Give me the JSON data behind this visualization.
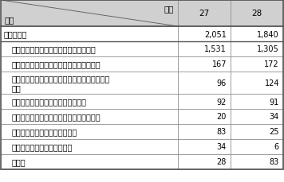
{
  "rows": [
    {
      "label": "合計（件）",
      "v27": "2,051",
      "v28": "1,840",
      "indent": false,
      "bold": false
    },
    {
      "label": "インターネットバンキングでの不正送金",
      "v27": "1,531",
      "v28": "1,305",
      "indent": true,
      "bold": false
    },
    {
      "label": "インターネットショッピングでの不正購入",
      "v27": "167",
      "v28": "172",
      "indent": true,
      "bold": false
    },
    {
      "label": "オンラインゲーム、コミュニティサイトの不正\n操作",
      "v27": "96",
      "v28": "124",
      "indent": true,
      "bold": false,
      "tall": true
    },
    {
      "label": "メールの盗み見等の情報の不正入手",
      "v27": "92",
      "v28": "91",
      "indent": true,
      "bold": false
    },
    {
      "label": "インターネット・オークションの不正操作",
      "v27": "20",
      "v28": "34",
      "indent": true,
      "bold": false
    },
    {
      "label": "知人になりすましての情報発信",
      "v27": "83",
      "v28": "25",
      "indent": true,
      "bold": false
    },
    {
      "label": "ウェブサイトの改ざん・消去",
      "v27": "34",
      "v28": "6",
      "indent": true,
      "bold": false
    },
    {
      "label": "その他",
      "v27": "28",
      "v28": "83",
      "indent": true,
      "bold": false
    }
  ],
  "col_header_left": "区分",
  "col_header_year": "年次",
  "col_header_27": "27",
  "col_header_28": "28",
  "bg_header": "#d0d0d0",
  "bg_white": "#ffffff",
  "border_color": "#888888",
  "outer_border": "#555555",
  "text_color": "#000000",
  "font_size": 7.0,
  "header_font_size": 7.5
}
